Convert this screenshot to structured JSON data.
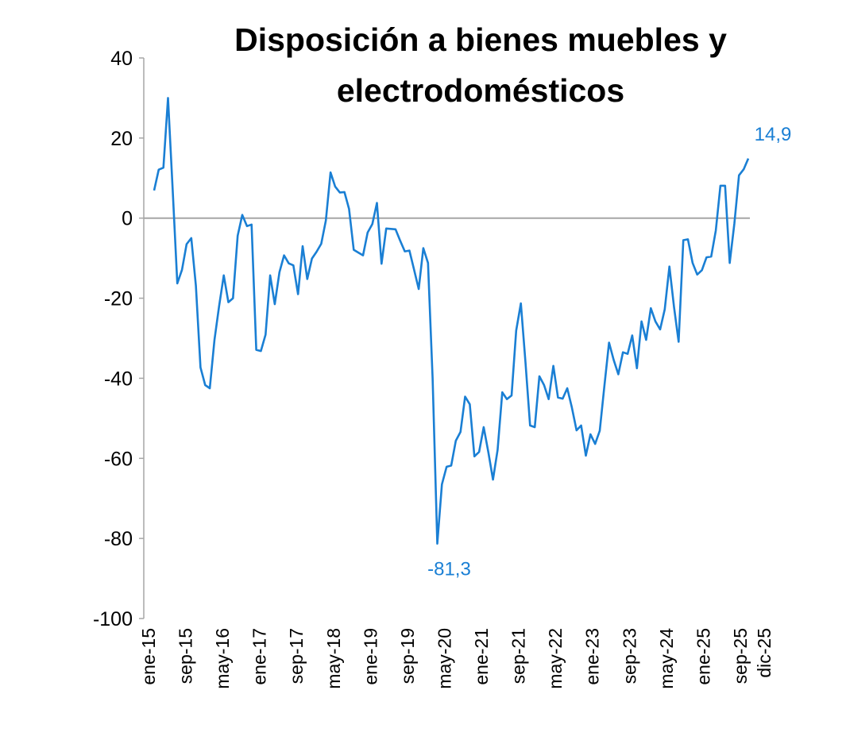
{
  "chart_data": {
    "type": "line",
    "title_lines": [
      "Disposición a bienes muebles y",
      "electrodomésticos"
    ],
    "xlabel": "",
    "ylabel": "",
    "ylim": [
      -100,
      40
    ],
    "yticks": [
      40,
      20,
      0,
      -20,
      -40,
      -60,
      -80,
      -100
    ],
    "xtick_labels": [
      "ene-15",
      "sep-15",
      "may-16",
      "ene-17",
      "sep-17",
      "may-18",
      "ene-19",
      "sep-19",
      "may-20",
      "ene-21",
      "sep-21",
      "may-22",
      "ene-23",
      "sep-23",
      "may-24",
      "ene-25",
      "sep-25",
      "dic-25"
    ],
    "xtick_months": [
      0,
      8,
      16,
      24,
      32,
      40,
      48,
      56,
      64,
      72,
      80,
      88,
      96,
      104,
      112,
      120,
      128,
      131
    ],
    "grid": false,
    "line_color": "#1a7fd4",
    "series": [
      {
        "name": "Disposición a bienes muebles y electrodomésticos",
        "values": [
          6.9,
          12.1,
          12.6,
          30,
          7,
          -16.3,
          -12.9,
          -6.5,
          -5,
          -16.9,
          -37.3,
          -41.7,
          -42.5,
          -30.4,
          -22,
          -14.3,
          -21,
          -20,
          -4.4,
          0.8,
          -2,
          -1.6,
          -32.9,
          -33.2,
          -29.1,
          -14.3,
          -21.5,
          -13.5,
          -9.3,
          -11.3,
          -11.8,
          -19,
          -7,
          -15.2,
          -10.1,
          -8.4,
          -6.4,
          -0.6,
          11.4,
          7.9,
          6.4,
          6.5,
          2.3,
          -7.9,
          -8.6,
          -9.3,
          -3.6,
          -1.5,
          3.8,
          -11.4,
          -2.6,
          -2.7,
          -2.8,
          -5.6,
          -8.3,
          -8.1,
          -12.9,
          -17.7,
          -7.5,
          -11.2,
          -40,
          -81.3,
          -66.5,
          -62.1,
          -61.8,
          -55.6,
          -53.4,
          -44.6,
          -46.5,
          -59.5,
          -58.4,
          -52.2,
          -58.5,
          -65.3,
          -57.9,
          -43.5,
          -45.2,
          -44.3,
          -28.1,
          -21.3,
          -36,
          -51.8,
          -52.2,
          -39.5,
          -41.7,
          -45.2,
          -36.9,
          -44.8,
          -45.1,
          -42.5,
          -47.3,
          -53,
          -51.8,
          -59.3,
          -54,
          -56.4,
          -53.1,
          -42,
          -31.1,
          -35.4,
          -39,
          -33.5,
          -33.9,
          -29.3,
          -37.5,
          -25.8,
          -30.4,
          -22.5,
          -25.8,
          -27.8,
          -22.8,
          -12.1,
          -22.2,
          -30.9,
          -5.5,
          -5.3,
          -11.2,
          -14.1,
          -13,
          -9.8,
          -9.6,
          -3.1,
          8.1,
          8.1,
          -11.2,
          -1.3,
          10.7,
          12.2,
          14.9
        ]
      }
    ],
    "annotations": {
      "min_label": "-81,3",
      "last_label": "14,9"
    }
  }
}
